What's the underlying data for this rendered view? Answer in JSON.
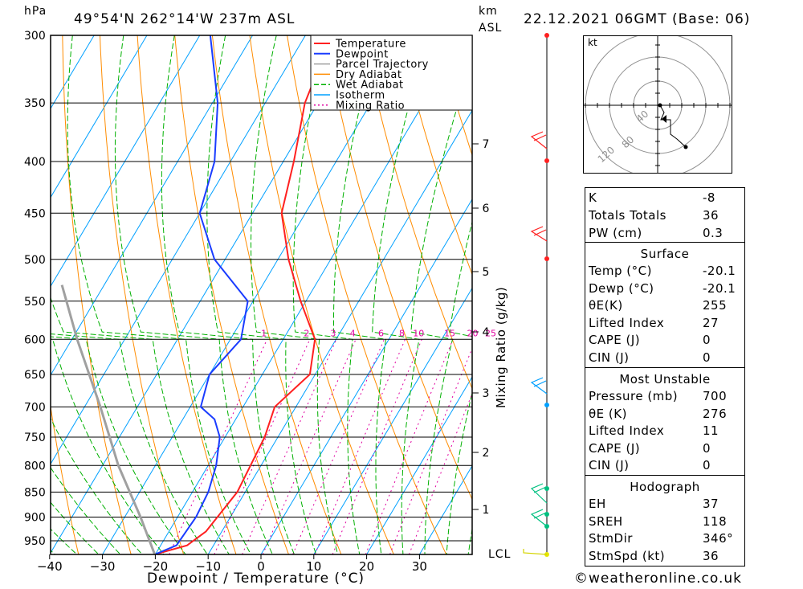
{
  "header": {
    "pressure_unit": "hPa",
    "location": "49°54'N  262°14'W  237m  ASL",
    "height_unit_top": "km",
    "height_unit_bottom": "ASL",
    "datetime": "22.12.2021  06GMT  (Base: 06)"
  },
  "footer": {
    "xlabel": "Dewpoint / Temperature (°C)",
    "mixing_label": "Mixing Ratio (g/kg)",
    "lcl_label": "LCL",
    "credit": "©weatheronline.co.uk"
  },
  "legend": [
    "Temperature",
    "Dewpoint",
    "Parcel Trajectory",
    "Dry Adiabat",
    "Wet Adiabat",
    "Isotherm",
    "Mixing Ratio"
  ],
  "colors": {
    "temperature": "#ff2020",
    "dewpoint": "#1a3cff",
    "parcel": "#a0a0a0",
    "dry_adiabat": "#ff8c00",
    "wet_adiabat": "#00b000",
    "isotherm": "#00a0ff",
    "mixing_ratio": "#e000a0"
  },
  "chart_data": {
    "type": "line",
    "title": "49°54'N  262°14'W  237m  ASL",
    "xlabel": "Dewpoint / Temperature (°C)",
    "ylabel": "hPa",
    "pressure_levels": [
      300,
      350,
      400,
      450,
      500,
      550,
      600,
      650,
      700,
      750,
      800,
      850,
      900,
      950
    ],
    "x_ticks": [
      -40,
      -30,
      -20,
      -10,
      0,
      10,
      20,
      30
    ],
    "height_km_ticks": [
      1,
      2,
      3,
      4,
      5,
      6,
      7
    ],
    "mixing_ratio_values": [
      1,
      2,
      3,
      4,
      6,
      8,
      10,
      15,
      20,
      25
    ],
    "series": [
      {
        "name": "Temperature",
        "points": [
          {
            "p": 980,
            "t": -20.1
          },
          {
            "p": 960,
            "t": -15
          },
          {
            "p": 930,
            "t": -13
          },
          {
            "p": 850,
            "t": -11.5
          },
          {
            "p": 750,
            "t": -12.5
          },
          {
            "p": 700,
            "t": -14
          },
          {
            "p": 650,
            "t": -11
          },
          {
            "p": 600,
            "t": -14
          },
          {
            "p": 550,
            "t": -21
          },
          {
            "p": 500,
            "t": -28
          },
          {
            "p": 450,
            "t": -34.5
          },
          {
            "p": 400,
            "t": -38
          },
          {
            "p": 350,
            "t": -42.5
          },
          {
            "p": 300,
            "t": -45
          }
        ]
      },
      {
        "name": "Dewpoint",
        "points": [
          {
            "p": 980,
            "t": -20.1
          },
          {
            "p": 960,
            "t": -17
          },
          {
            "p": 900,
            "t": -16.5
          },
          {
            "p": 850,
            "t": -17
          },
          {
            "p": 800,
            "t": -18.5
          },
          {
            "p": 750,
            "t": -21
          },
          {
            "p": 720,
            "t": -24
          },
          {
            "p": 700,
            "t": -28
          },
          {
            "p": 650,
            "t": -30
          },
          {
            "p": 600,
            "t": -28
          },
          {
            "p": 550,
            "t": -31
          },
          {
            "p": 500,
            "t": -42
          },
          {
            "p": 450,
            "t": -50
          },
          {
            "p": 400,
            "t": -53
          },
          {
            "p": 350,
            "t": -59
          },
          {
            "p": 300,
            "t": -68
          }
        ]
      },
      {
        "name": "Parcel Trajectory",
        "points": [
          {
            "p": 980,
            "t": -20.1
          },
          {
            "p": 900,
            "t": -27
          },
          {
            "p": 800,
            "t": -37
          },
          {
            "p": 700,
            "t": -47
          },
          {
            "p": 600,
            "t": -59
          },
          {
            "p": 530,
            "t": -68
          }
        ]
      }
    ],
    "wind_barbs_km": [
      0,
      0.5,
      1.0,
      1.5,
      3.0,
      5.2,
      6.8
    ]
  },
  "hodograph": {
    "unit": "kt",
    "ring_labels": [
      "40",
      "80",
      "120"
    ]
  },
  "indices": {
    "k_label": "K",
    "k_value": "-8",
    "tt_label": "Totals Totals",
    "tt_value": "36",
    "pw_label": "PW (cm)",
    "pw_value": "0.3"
  },
  "surface": {
    "title": "Surface",
    "rows": [
      {
        "label": "Temp (°C)",
        "value": "-20.1"
      },
      {
        "label": "Dewp (°C)",
        "value": "-20.1"
      },
      {
        "label": "θE(K)",
        "value": "255"
      },
      {
        "label": "Lifted Index",
        "value": "27"
      },
      {
        "label": "CAPE (J)",
        "value": "0"
      },
      {
        "label": "CIN (J)",
        "value": "0"
      }
    ]
  },
  "most_unstable": {
    "title": "Most Unstable",
    "rows": [
      {
        "label": "Pressure (mb)",
        "value": "700"
      },
      {
        "label": "θE (K)",
        "value": "276"
      },
      {
        "label": "Lifted Index",
        "value": "11"
      },
      {
        "label": "CAPE (J)",
        "value": "0"
      },
      {
        "label": "CIN (J)",
        "value": "0"
      }
    ]
  },
  "hodograph_table": {
    "title": "Hodograph",
    "rows": [
      {
        "label": "EH",
        "value": "37"
      },
      {
        "label": "SREH",
        "value": "118"
      },
      {
        "label": "StmDir",
        "value": "346°"
      },
      {
        "label": "StmSpd (kt)",
        "value": "36"
      }
    ]
  }
}
